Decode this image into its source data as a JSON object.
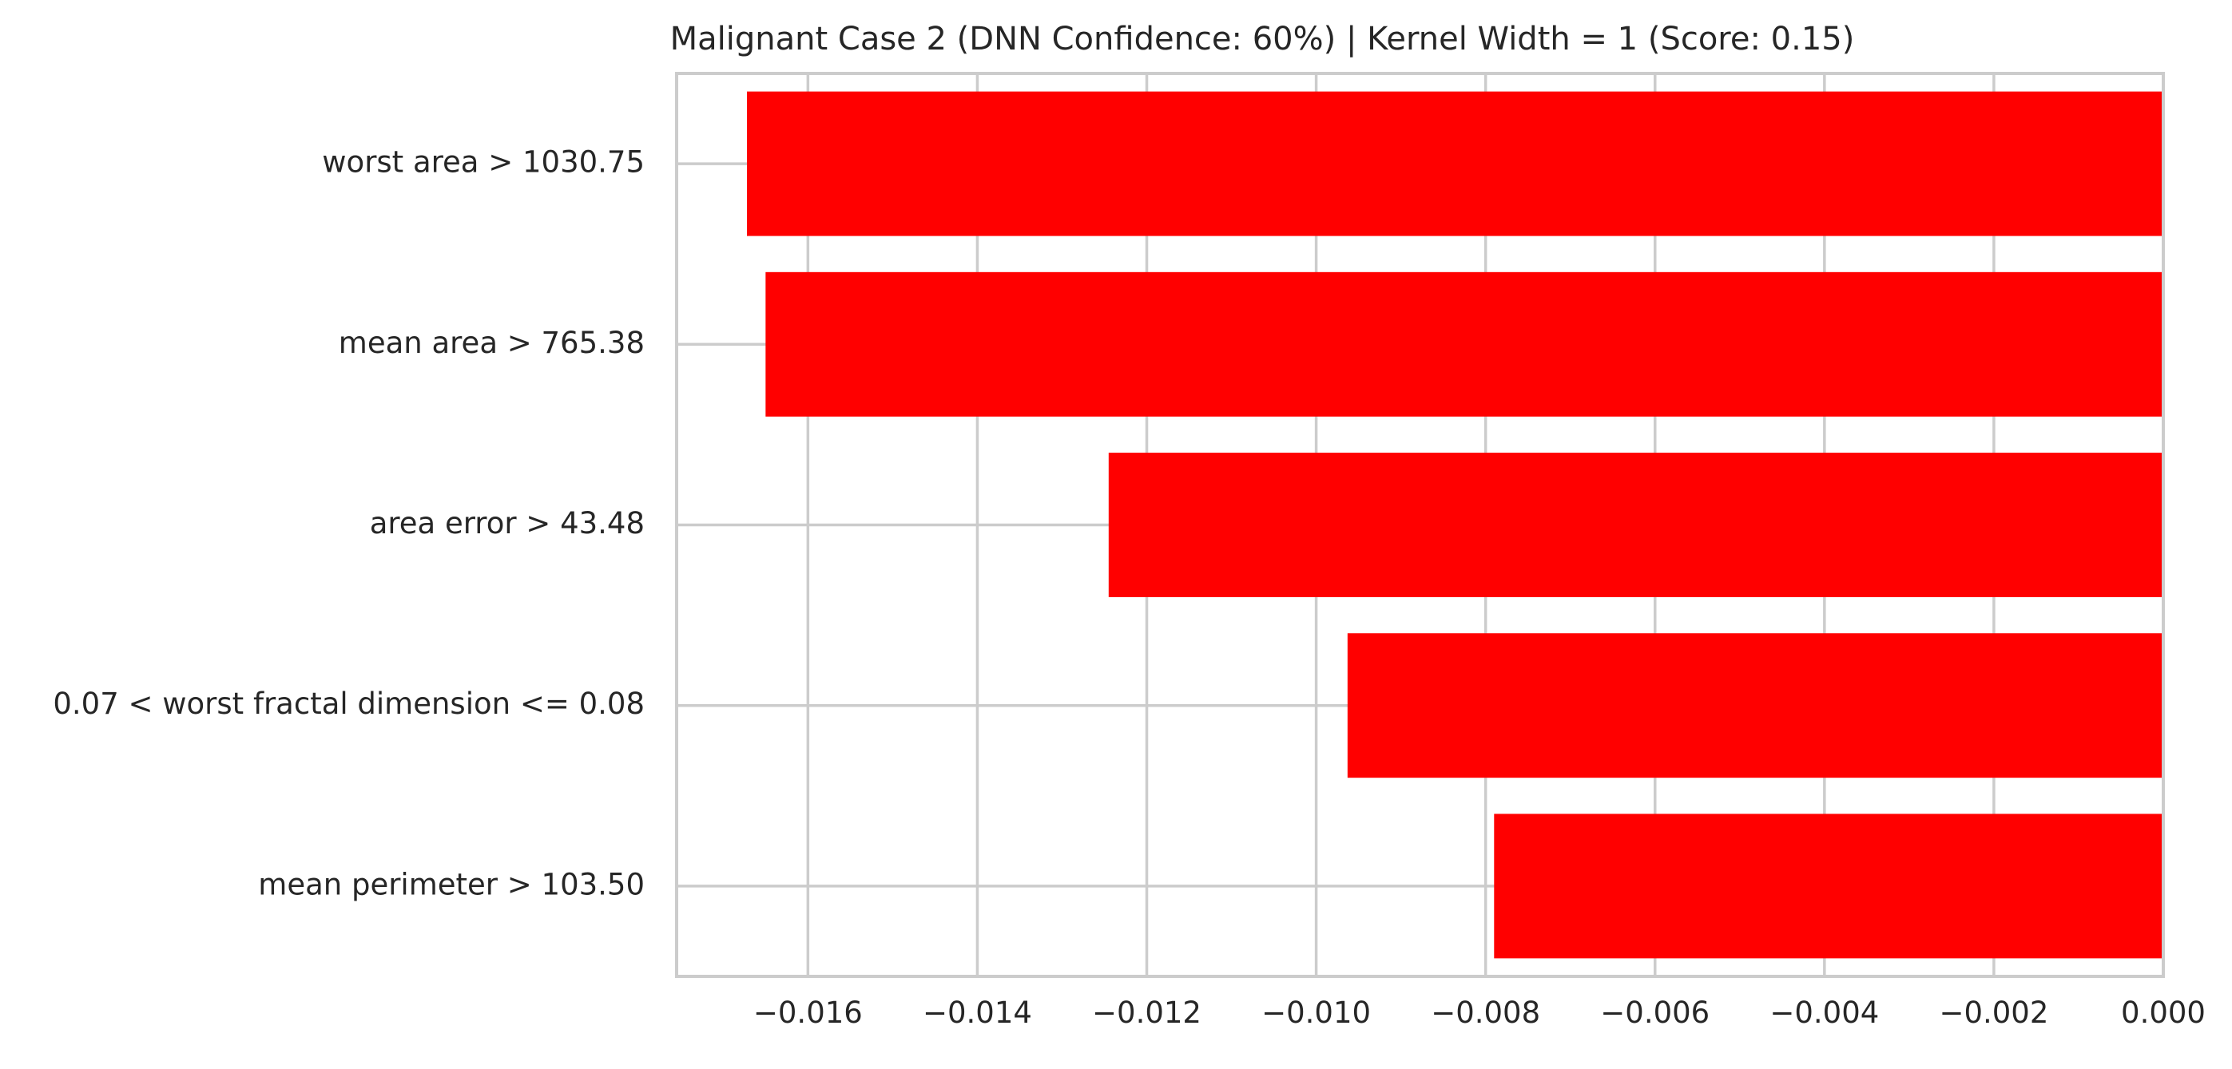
{
  "chart_data": {
    "type": "bar",
    "orientation": "horizontal",
    "title": "Malignant Case 2 (DNN Confidence: 60%) | Kernel Width = 1 (Score: 0.15)",
    "xlabel": "",
    "ylabel": "",
    "categories": [
      "worst area > 1030.75",
      "mean area > 765.38",
      "area error > 43.48",
      "0.07 < worst fractal dimension <= 0.08",
      "mean perimeter > 103.50"
    ],
    "values": [
      -0.01672,
      -0.0165,
      -0.01245,
      -0.00963,
      -0.0079
    ],
    "xlim": [
      -0.01755,
      0.0
    ],
    "x_ticks": [
      -0.016,
      -0.014,
      -0.012,
      -0.01,
      -0.008,
      -0.006,
      -0.004,
      -0.002,
      0.0
    ],
    "x_tick_labels": [
      "−0.016",
      "−0.014",
      "−0.012",
      "−0.010",
      "−0.008",
      "−0.006",
      "−0.004",
      "−0.002",
      "0.000"
    ],
    "grid": true,
    "colors": {
      "bar": "#ff0000",
      "grid": "#cccccc",
      "spine": "#cccccc",
      "text": "#262626",
      "background": "#ffffff"
    }
  }
}
